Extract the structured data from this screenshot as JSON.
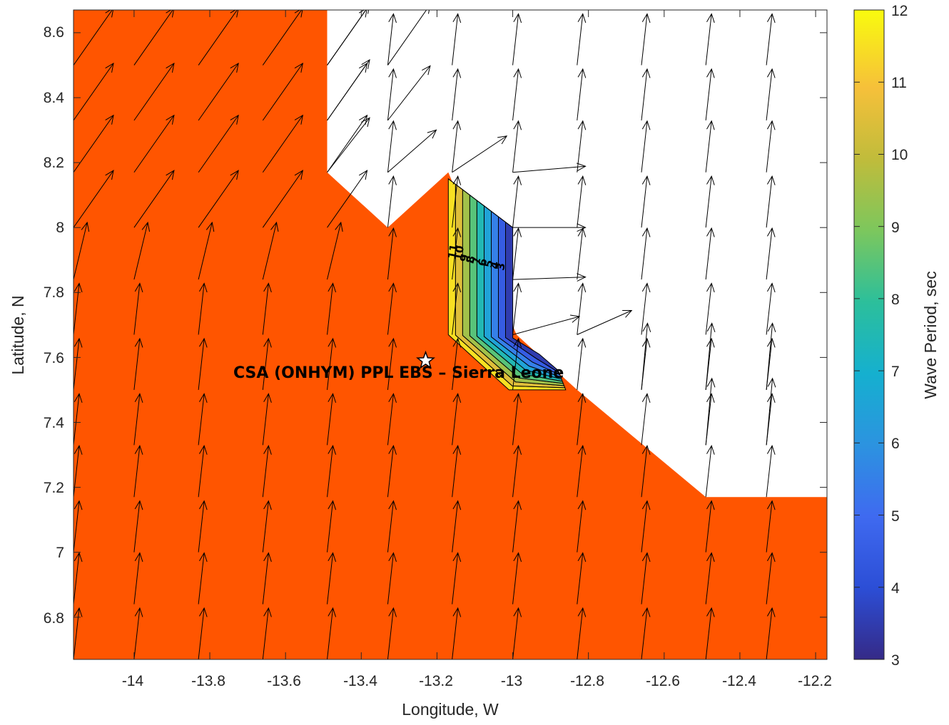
{
  "chart_data": {
    "type": "contour-quiver-map",
    "xlabel": "Longitude, W",
    "ylabel": "Latitude, N",
    "xlim": [
      -14.16,
      -12.17
    ],
    "ylim": [
      6.67,
      8.67
    ],
    "x_ticks": [
      "-14",
      "-13.8",
      "-13.6",
      "-13.4",
      "-13.2",
      "-13",
      "-12.8",
      "-12.6",
      "-12.4",
      "-12.2"
    ],
    "x_tick_values": [
      -14,
      -13.8,
      -13.6,
      -13.4,
      -13.2,
      -13,
      -12.8,
      -12.6,
      -12.4,
      -12.2
    ],
    "y_ticks": [
      "6.8",
      "7",
      "7.2",
      "7.4",
      "7.6",
      "7.8",
      "8",
      "8.2",
      "8.4",
      "8.6"
    ],
    "y_tick_values": [
      6.8,
      7.0,
      7.2,
      7.4,
      7.6,
      7.8,
      8.0,
      8.2,
      8.4,
      8.6
    ],
    "colorbar": {
      "label": "Wave Period, sec",
      "min": 3,
      "max": 12,
      "ticks": [
        "3",
        "4",
        "5",
        "6",
        "7",
        "8",
        "9",
        "10",
        "11",
        "12"
      ],
      "tick_values": [
        3,
        4,
        5,
        6,
        7,
        8,
        9,
        10,
        11,
        12
      ]
    },
    "site": {
      "name": "CSA (ONHYM) PPL EBS  – Sierra Leone",
      "lon": -13.23,
      "lat": 7.59
    },
    "land_color": "#ff5500",
    "land_polygon": [
      [
        -14.16,
        8.67
      ],
      [
        -13.49,
        8.67
      ],
      [
        -13.49,
        8.17
      ],
      [
        -13.33,
        8.0
      ],
      [
        -13.17,
        8.17
      ],
      [
        -12.99,
        7.67
      ],
      [
        -12.83,
        7.5
      ],
      [
        -12.49,
        7.17
      ],
      [
        -12.17,
        7.17
      ],
      [
        -12.17,
        6.67
      ],
      [
        -14.16,
        6.67
      ]
    ],
    "contour_levels": [
      3,
      4,
      5,
      6,
      7,
      8,
      9,
      10,
      11,
      12
    ],
    "contour_labels": [
      "11",
      "10",
      "9",
      "8",
      "7",
      "6",
      "5",
      "4",
      "3"
    ],
    "wind_arrows_land": {
      "columns_lon": [
        -14.16,
        -14.0,
        -13.83,
        -13.66,
        -13.49,
        -13.33,
        -13.16,
        -13.0,
        -12.83,
        -12.66,
        -12.49,
        -12.33
      ],
      "rows_lat": [
        6.67,
        6.84,
        7.0,
        7.17,
        7.33,
        7.5,
        7.67,
        7.84,
        8.0,
        8.17,
        8.33,
        8.5
      ],
      "direction": "NNE"
    },
    "wind_arrows_sea": [
      {
        "lon": -13.49,
        "lat": 8.5,
        "u": 0.35,
        "v": 0.5
      },
      {
        "lon": -13.33,
        "lat": 8.5,
        "u": 0.35,
        "v": 0.5
      },
      {
        "lon": -13.49,
        "lat": 8.33,
        "u": 0.35,
        "v": 0.5
      },
      {
        "lon": -13.33,
        "lat": 8.33,
        "u": 0.35,
        "v": 0.45
      },
      {
        "lon": -13.49,
        "lat": 8.17,
        "u": 0.35,
        "v": 0.45
      },
      {
        "lon": -13.33,
        "lat": 8.17,
        "u": 0.4,
        "v": 0.35
      },
      {
        "lon": -13.16,
        "lat": 8.17,
        "u": 0.45,
        "v": 0.3
      },
      {
        "lon": -13.0,
        "lat": 8.17,
        "u": 0.6,
        "v": 0.05
      },
      {
        "lon": -13.0,
        "lat": 8.0,
        "u": 0.6,
        "v": 0.0
      },
      {
        "lon": -13.0,
        "lat": 7.84,
        "u": 0.6,
        "v": 0.02
      },
      {
        "lon": -13.0,
        "lat": 7.67,
        "u": 0.55,
        "v": 0.15
      },
      {
        "lon": -12.83,
        "lat": 7.67,
        "u": 0.45,
        "v": 0.2
      },
      {
        "lon": -12.66,
        "lat": 7.5,
        "u": 0.05,
        "v": 0.55
      },
      {
        "lon": -12.49,
        "lat": 7.5,
        "u": 0.05,
        "v": 0.55
      },
      {
        "lon": -12.33,
        "lat": 7.5,
        "u": 0.05,
        "v": 0.55
      },
      {
        "lon": -12.49,
        "lat": 7.33,
        "u": 0.05,
        "v": 0.55
      },
      {
        "lon": -12.33,
        "lat": 7.33,
        "u": 0.05,
        "v": 0.55
      }
    ]
  }
}
